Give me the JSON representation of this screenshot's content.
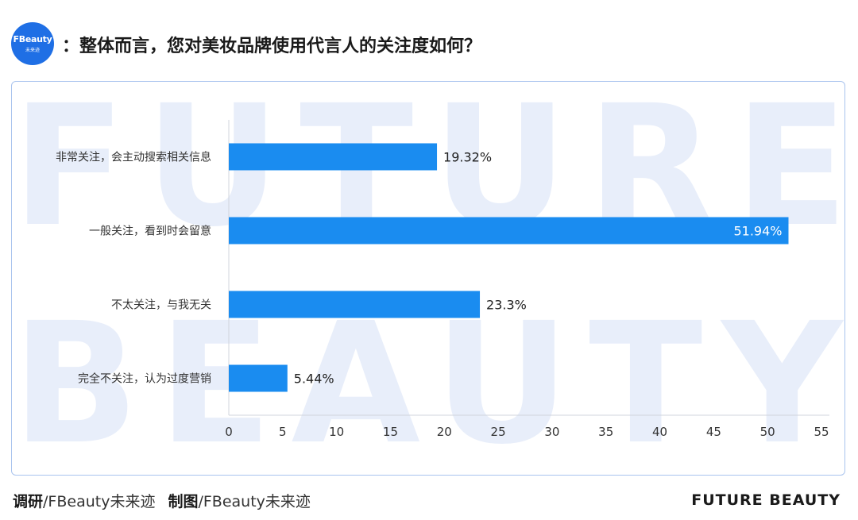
{
  "header": {
    "logo_text": "FBeauty",
    "logo_sub": "未来迹",
    "title": "：整体而言，您对美妆品牌使用代言人的关注度如何？"
  },
  "watermark": {
    "line1": "FUTURE",
    "line2": "BEAUTY"
  },
  "chart_data": {
    "type": "bar",
    "orientation": "horizontal",
    "categories": [
      "非常关注，会主动搜索相关信息",
      "一般关注，看到时会留意",
      "不太关注，与我无关",
      "完全不关注，认为过度营销"
    ],
    "values": [
      19.32,
      51.94,
      23.3,
      5.44
    ],
    "value_labels": [
      "19.32%",
      "51.94%",
      "23.3%",
      "5.44%"
    ],
    "xlim": [
      0,
      55
    ],
    "xticks": [
      0,
      5,
      10,
      15,
      20,
      25,
      30,
      35,
      40,
      45,
      50,
      55
    ],
    "grid": false,
    "bar_color": "#1a8cf0"
  },
  "footer": {
    "research_label": "调研",
    "research_value": "/FBeauty未来迹",
    "design_label": "制图",
    "design_value": "/FBeauty未来迹",
    "brand": "FUTURE BEAUTY"
  }
}
